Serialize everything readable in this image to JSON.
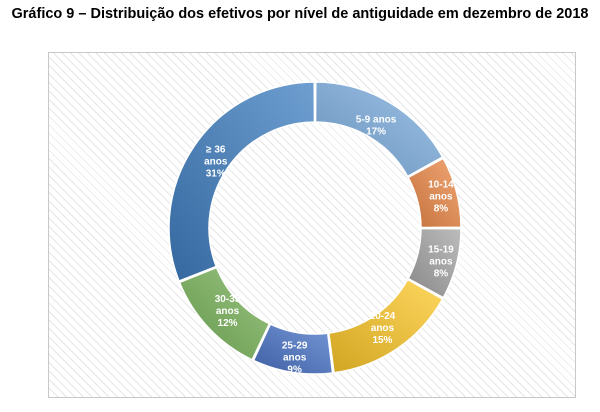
{
  "title": "Gráfico 9 – Distribuição dos efetivos por nível de antiguidade em dezembro de 2018",
  "colors": {
    "5-9": "#7fb0e2",
    "10-14": "#ee8a48",
    "15-19": "#a6a6a6",
    "20-24": "#ffc92a",
    "25-29": "#4a74c8",
    "30-35": "#79b45a",
    "36+": "#3f7fc2"
  },
  "chart_data": {
    "type": "pie",
    "subtype": "doughnut",
    "title": "Gráfico 9 – Distribuição dos efetivos por nível de antiguidade em dezembro de 2018",
    "slices": [
      {
        "key": "5-9",
        "label_lines": [
          "5-9 anos",
          "17%"
        ],
        "value": 17
      },
      {
        "key": "10-14",
        "label_lines": [
          "10-14",
          "anos",
          "8%"
        ],
        "value": 8
      },
      {
        "key": "15-19",
        "label_lines": [
          "15-19",
          "anos",
          "8%"
        ],
        "value": 8
      },
      {
        "key": "20-24",
        "label_lines": [
          "20-24",
          "anos",
          "15%"
        ],
        "value": 15
      },
      {
        "key": "25-29",
        "label_lines": [
          "25-29",
          "anos",
          "9%"
        ],
        "value": 9
      },
      {
        "key": "30-35",
        "label_lines": [
          "30-35",
          "anos",
          "12%"
        ],
        "value": 12
      },
      {
        "key": "36+",
        "label_lines": [
          "≥ 36",
          "anos",
          "31%"
        ],
        "value": 31
      }
    ]
  }
}
